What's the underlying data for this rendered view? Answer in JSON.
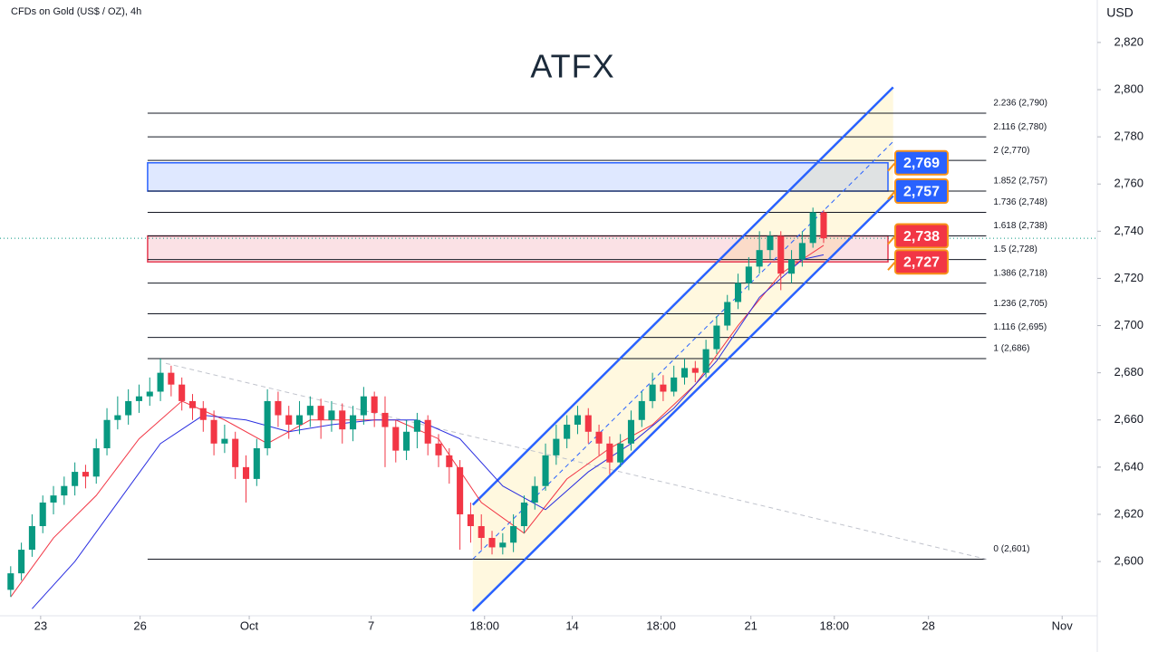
{
  "chart_data": {
    "type": "candlestick",
    "title": "CFDs on Gold (US$ / OZ), 4h",
    "brand": "ATFX",
    "y_axis_label": "USD",
    "up_color": "#089981",
    "down_color": "#f23645",
    "ylim": [
      2577,
      2838
    ],
    "yticks": [
      {
        "value": 2600,
        "label": "2,600"
      },
      {
        "value": 2620,
        "label": "2,620"
      },
      {
        "value": 2640,
        "label": "2,640"
      },
      {
        "value": 2660,
        "label": "2,660"
      },
      {
        "value": 2680,
        "label": "2,680"
      },
      {
        "value": 2700,
        "label": "2,700"
      },
      {
        "value": 2720,
        "label": "2,720"
      },
      {
        "value": 2740,
        "label": "2,740"
      },
      {
        "value": 2760,
        "label": "2,760"
      },
      {
        "value": 2780,
        "label": "2,780"
      },
      {
        "value": 2800,
        "label": "2,800"
      },
      {
        "value": 2820,
        "label": "2,820"
      }
    ],
    "xlim": [
      -1,
      101.5
    ],
    "xticks": [
      {
        "value": 2.8,
        "label": "23"
      },
      {
        "value": 12.1,
        "label": "26"
      },
      {
        "value": 22.3,
        "label": "Oct"
      },
      {
        "value": 33.7,
        "label": "7"
      },
      {
        "value": 44.3,
        "label": "18:00"
      },
      {
        "value": 52.5,
        "label": "14"
      },
      {
        "value": 60.8,
        "label": "18:00"
      },
      {
        "value": 69.2,
        "label": "21"
      },
      {
        "value": 77,
        "label": "18:00"
      },
      {
        "value": 85.8,
        "label": "28"
      },
      {
        "value": 98.3,
        "label": "Nov"
      }
    ],
    "open": [
      2588,
      2595,
      2605,
      2615,
      2625,
      2628,
      2632,
      2638,
      2636,
      2648,
      2660,
      2662,
      2668,
      2670,
      2672,
      2680,
      2675,
      2668,
      2665,
      2660,
      2650,
      2652,
      2640,
      2635,
      2648,
      2668,
      2662,
      2658,
      2662,
      2666,
      2660,
      2664,
      2656,
      2662,
      2670,
      2663,
      2657,
      2647,
      2655,
      2660,
      2650,
      2645,
      2640,
      2620,
      2615,
      2610,
      2606,
      2608,
      2615,
      2625,
      2632,
      2645,
      2652,
      2658,
      2662,
      2655,
      2650,
      2642,
      2650,
      2660,
      2668,
      2675,
      2672,
      2678,
      2682,
      2680,
      2690,
      2700,
      2710,
      2718,
      2725,
      2732,
      2738,
      2722,
      2728,
      2735,
      2748
    ],
    "high": [
      2598,
      2608,
      2620,
      2628,
      2632,
      2636,
      2642,
      2641,
      2652,
      2665,
      2670,
      2673,
      2675,
      2678,
      2686,
      2683,
      2678,
      2671,
      2668,
      2664,
      2658,
      2655,
      2645,
      2652,
      2673,
      2672,
      2666,
      2668,
      2670,
      2669,
      2668,
      2667,
      2666,
      2674,
      2672,
      2670,
      2660,
      2660,
      2663,
      2662,
      2654,
      2648,
      2643,
      2625,
      2620,
      2613,
      2612,
      2620,
      2628,
      2636,
      2650,
      2658,
      2662,
      2666,
      2665,
      2658,
      2653,
      2654,
      2664,
      2672,
      2680,
      2679,
      2683,
      2686,
      2685,
      2694,
      2704,
      2713,
      2722,
      2729,
      2740,
      2740,
      2740,
      2732,
      2740,
      2750,
      2749
    ],
    "low": [
      2585,
      2592,
      2602,
      2612,
      2620,
      2624,
      2628,
      2631,
      2633,
      2645,
      2656,
      2658,
      2663,
      2666,
      2668,
      2670,
      2664,
      2660,
      2655,
      2645,
      2646,
      2635,
      2625,
      2632,
      2645,
      2657,
      2652,
      2654,
      2657,
      2652,
      2655,
      2650,
      2651,
      2658,
      2657,
      2640,
      2642,
      2643,
      2648,
      2645,
      2640,
      2633,
      2605,
      2608,
      2605,
      2603,
      2603,
      2604,
      2612,
      2622,
      2630,
      2641,
      2648,
      2654,
      2650,
      2645,
      2637,
      2640,
      2647,
      2657,
      2665,
      2668,
      2670,
      2675,
      2676,
      2678,
      2688,
      2698,
      2707,
      2715,
      2722,
      2728,
      2715,
      2718,
      2725,
      2733,
      2735
    ],
    "close": [
      2595,
      2605,
      2615,
      2625,
      2628,
      2632,
      2638,
      2636,
      2648,
      2660,
      2662,
      2668,
      2670,
      2672,
      2680,
      2675,
      2668,
      2665,
      2660,
      2650,
      2652,
      2640,
      2635,
      2648,
      2668,
      2662,
      2658,
      2662,
      2666,
      2660,
      2664,
      2656,
      2662,
      2670,
      2663,
      2657,
      2647,
      2655,
      2660,
      2650,
      2645,
      2640,
      2620,
      2615,
      2610,
      2606,
      2608,
      2615,
      2625,
      2632,
      2645,
      2652,
      2658,
      2662,
      2655,
      2650,
      2642,
      2650,
      2660,
      2668,
      2675,
      2672,
      2678,
      2682,
      2680,
      2690,
      2700,
      2710,
      2718,
      2725,
      2732,
      2738,
      2722,
      2728,
      2735,
      2748,
      2737
    ],
    "moving_averages": [
      {
        "color": "#f23645",
        "x": [
          0,
          4,
          8,
          12,
          16,
          20,
          24,
          28,
          32,
          36,
          40,
          44,
          48,
          52,
          56,
          60,
          64,
          68,
          72,
          76
        ],
        "values": [
          2585,
          2610,
          2628,
          2652,
          2668,
          2660,
          2650,
          2660,
          2660,
          2660,
          2652,
          2625,
          2612,
          2635,
          2648,
          2658,
          2675,
          2700,
          2722,
          2734
        ]
      },
      {
        "color": "#2a2ee0",
        "x": [
          2,
          6,
          10,
          14,
          18,
          22,
          26,
          30,
          34,
          38,
          42,
          46,
          50,
          54,
          58,
          62,
          66,
          70,
          74,
          76
        ],
        "values": [
          2580,
          2600,
          2625,
          2650,
          2662,
          2660,
          2655,
          2658,
          2660,
          2660,
          2652,
          2632,
          2622,
          2638,
          2650,
          2665,
          2685,
          2712,
          2728,
          2730
        ]
      }
    ],
    "fib_levels": [
      {
        "value": 2790,
        "label": "2.236 (2,790)"
      },
      {
        "value": 2780,
        "label": "2.116 (2,780)"
      },
      {
        "value": 2770,
        "label": "2 (2,770)"
      },
      {
        "value": 2757,
        "label": "1.852 (2,757)"
      },
      {
        "value": 2748,
        "label": "1.736 (2,748)"
      },
      {
        "value": 2738,
        "label": "1.618 (2,738)"
      },
      {
        "value": 2728,
        "label": "1.5 (2,728)"
      },
      {
        "value": 2718,
        "label": "1.386 (2,718)"
      },
      {
        "value": 2705,
        "label": "1.236 (2,705)"
      },
      {
        "value": 2695,
        "label": "1.116 (2,695)"
      },
      {
        "value": 2686,
        "label": "1 (2,686)"
      },
      {
        "value": 2601,
        "label": "0 (2,601)"
      }
    ],
    "zones": [
      {
        "low": 2757,
        "high": 2769,
        "color": "#2962ff"
      },
      {
        "low": 2727,
        "high": 2738,
        "color": "#e53950"
      }
    ],
    "price_tags": [
      {
        "value": 2769,
        "label": "2,769",
        "color": "#2962ff"
      },
      {
        "value": 2757,
        "label": "2,757",
        "color": "#2962ff"
      },
      {
        "value": 2738,
        "label": "2,738",
        "color": "#f23645"
      },
      {
        "value": 2727,
        "label": "2,727",
        "color": "#f23645"
      }
    ],
    "channel": {
      "x": [
        43.2,
        82.5
      ],
      "upper": [
        2624,
        2801
      ],
      "lower": [
        2579,
        2755
      ],
      "mid": [
        2601,
        2778
      ],
      "color": "#2962ff"
    },
    "trendline": {
      "x": [
        14.5,
        91.2
      ],
      "values": [
        2684,
        2601
      ]
    }
  }
}
